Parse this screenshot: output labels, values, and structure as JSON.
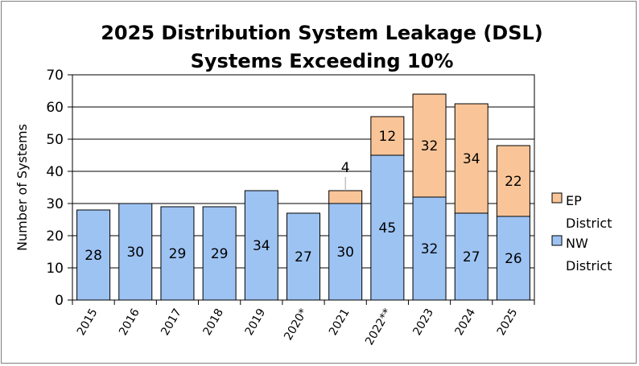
{
  "chart_data": {
    "type": "bar",
    "stacked": true,
    "title": "2025 Distribution System Leakage (DSL)",
    "subtitle": "Systems Exceeding 10%",
    "xlabel": "",
    "ylabel": "Number of Systems",
    "ylim": [
      0,
      70
    ],
    "yticks": [
      0,
      10,
      20,
      30,
      40,
      50,
      60,
      70
    ],
    "grid": true,
    "legend_position": "right",
    "categories": [
      "2015",
      "2016",
      "2017",
      "2018",
      "2019",
      "2020*",
      "2021",
      "2022**",
      "2023",
      "2024",
      "2025"
    ],
    "series": [
      {
        "name": "NW District",
        "color": "#9dc3f3",
        "values": [
          28,
          30,
          29,
          29,
          34,
          27,
          30,
          45,
          32,
          27,
          26
        ],
        "labels": [
          "28",
          "30",
          "29",
          "29",
          "34",
          "27",
          "30",
          "45",
          "32",
          "27",
          "26"
        ]
      },
      {
        "name": "EP District",
        "color": "#f9c598",
        "values": [
          0,
          0,
          0,
          0,
          0,
          0,
          4,
          12,
          32,
          34,
          22
        ],
        "labels": [
          "",
          "",
          "",
          "",
          "",
          "",
          "4",
          "12",
          "32",
          "34",
          "22"
        ]
      }
    ],
    "legend": [
      {
        "line1": "EP",
        "line2": "District",
        "color": "#f9c598"
      },
      {
        "line1": "NW",
        "line2": "District",
        "color": "#9dc3f3"
      }
    ]
  }
}
